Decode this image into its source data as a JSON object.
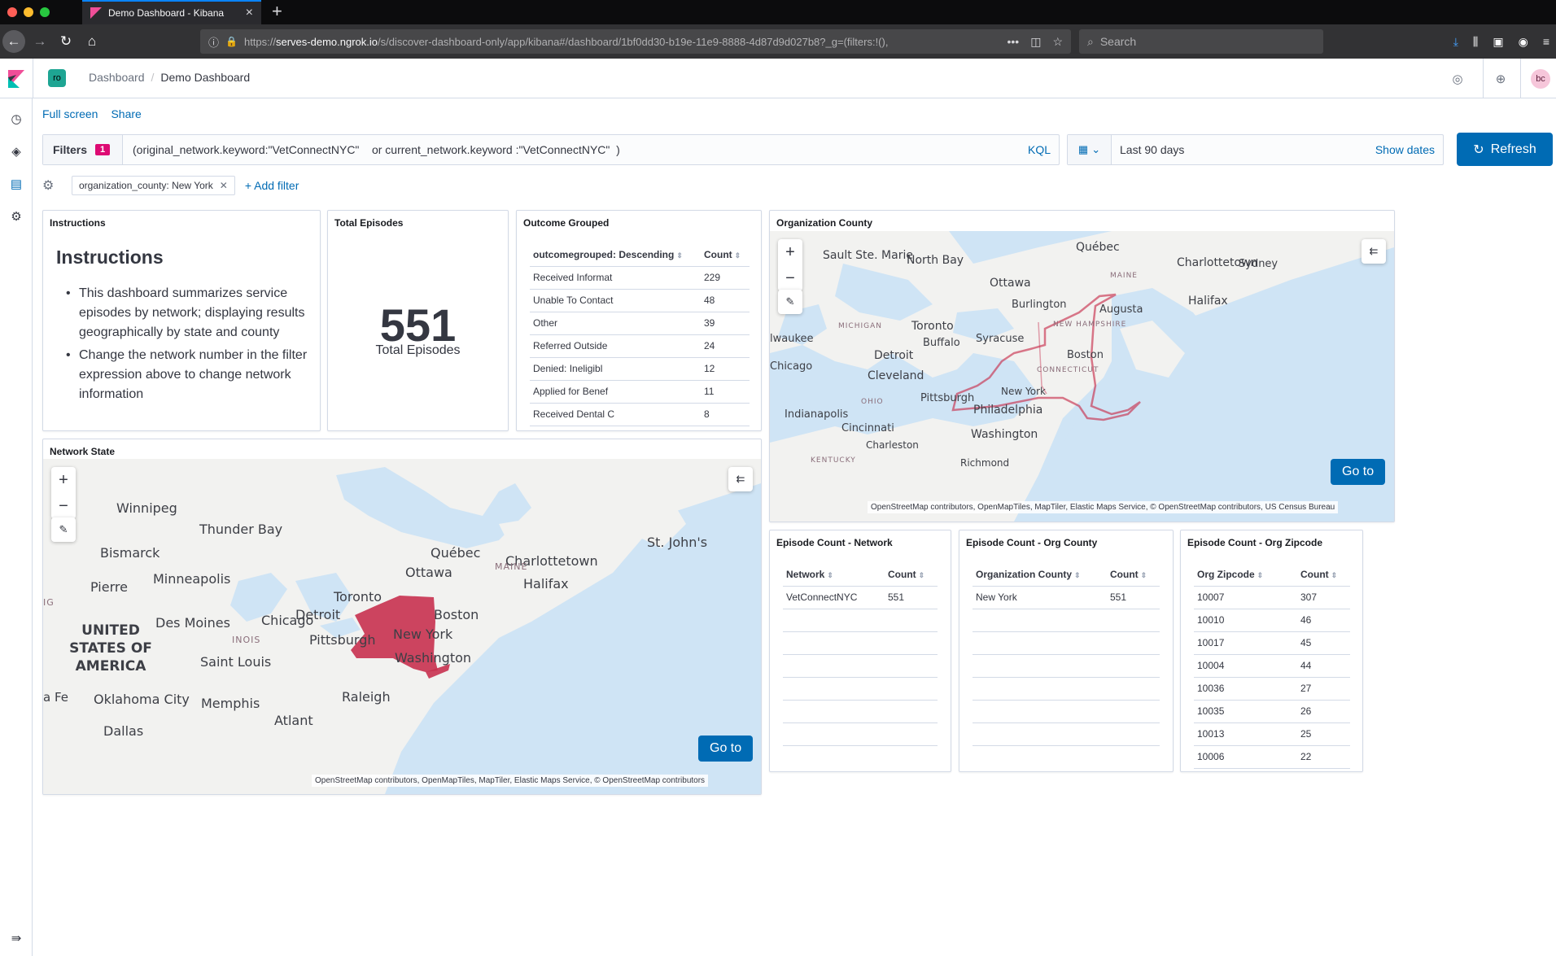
{
  "browser": {
    "tab_title": "Demo Dashboard - Kibana",
    "url_prefix": "https://",
    "url_host": "serves-demo.ngrok.io",
    "url_path": "/s/discover-dashboard-only/app/kibana#/dashboard/1bf0dd30-b19e-11e9-8888-4d87d9d027b8?_g=(filters:!(),",
    "search_placeholder": "Search"
  },
  "header": {
    "space_initials": "ro",
    "breadcrumb_root": "Dashboard",
    "breadcrumb_current": "Demo Dashboard",
    "user_initials": "bc"
  },
  "topnav": {
    "fullscreen": "Full screen",
    "share": "Share"
  },
  "querybar": {
    "filters_label": "Filters",
    "filters_count": "1",
    "query": "(original_network.keyword:\"VetConnectNYC\"    or current_network.keyword :\"VetConnectNYC\"  )",
    "language": "KQL",
    "date_range": "Last 90 days",
    "show_dates": "Show dates",
    "refresh": "Refresh"
  },
  "filters": {
    "pill": "organization_county: New York",
    "add": "+ Add filter"
  },
  "panels": {
    "instructions": {
      "title": "Instructions",
      "heading": "Instructions",
      "items": [
        "This dashboard summarizes service episodes by network; displaying results geographically by state and county",
        "Change the network number in the filter expression above to change network information"
      ]
    },
    "total": {
      "title": "Total Episodes",
      "value": "551",
      "label": "Total Episodes"
    },
    "outcome": {
      "title": "Outcome Grouped",
      "col1": "outcomegrouped: Descending",
      "col2": "Count",
      "rows": [
        [
          "Received Informat",
          "229"
        ],
        [
          "Unable To Contact",
          "48"
        ],
        [
          "Other",
          "39"
        ],
        [
          "Referred Outside",
          "24"
        ],
        [
          "Denied: Ineligibl",
          "12"
        ],
        [
          "Applied for Benef",
          "11"
        ],
        [
          "Received Dental C",
          "8"
        ]
      ]
    },
    "org_county_map": {
      "title": "Organization County",
      "goto": "Go to",
      "attribution": "OpenStreetMap contributors, OpenMapTiles, MapTiler, Elastic Maps Service, © OpenStreetMap contributors, US Census Bureau",
      "labels": [
        "Sault Ste. Marie",
        "North Bay",
        "Québec",
        "Charlottetown",
        "Sydney",
        "MAINE",
        "Ottawa",
        "Burlington",
        "Augusta",
        "Halifax",
        "MICHIGAN",
        "Toronto",
        "NEW HAMPSHIRE",
        "Buffalo",
        "Syracuse",
        "lwaukee",
        "Detroit",
        "Boston",
        "Chicago",
        "Cleveland",
        "CONNECTICUT",
        "OHIO",
        "Pittsburgh",
        "New York",
        "Indianapolis",
        "Philadelphia",
        "Cincinnati",
        "Washington",
        "Charleston",
        "KENTUCKY",
        "Richmond"
      ]
    },
    "network_state_map": {
      "title": "Network State",
      "goto": "Go to",
      "attribution": "OpenStreetMap contributors, OpenMapTiles, MapTiler, Elastic Maps Service, © OpenStreetMap contributors",
      "labels": [
        "Winnipeg",
        "Thunder Bay",
        "St. John's",
        "Bismarck",
        "Québec",
        "Charlottetown",
        "Minneapolis",
        "Ottawa",
        "MAINE",
        "Halifax",
        "Pierre",
        "Toronto",
        "UNITED STATES OF AMERICA",
        "Des Moines",
        "Chicago",
        "Detroit",
        "Boston",
        "INOIS",
        "Pittsburgh",
        "New York",
        "Saint Louis",
        "Washington",
        "Raleigh",
        "Oklahoma City",
        "Memphis",
        "a Fe",
        "Atlant",
        "Dallas",
        "IG"
      ]
    },
    "ep_network": {
      "title": "Episode Count - Network",
      "col1": "Network",
      "col2": "Count",
      "rows": [
        [
          "VetConnectNYC",
          "551"
        ]
      ]
    },
    "ep_county": {
      "title": "Episode Count - Org County",
      "col1": "Organization County",
      "col2": "Count",
      "rows": [
        [
          "New York",
          "551"
        ]
      ]
    },
    "ep_zip": {
      "title": "Episode Count - Org Zipcode",
      "col1": "Org Zipcode",
      "col2": "Count",
      "rows": [
        [
          "10007",
          "307"
        ],
        [
          "10010",
          "46"
        ],
        [
          "10017",
          "45"
        ],
        [
          "10004",
          "44"
        ],
        [
          "10036",
          "27"
        ],
        [
          "10035",
          "26"
        ],
        [
          "10013",
          "25"
        ],
        [
          "10006",
          "22"
        ]
      ]
    }
  },
  "colors": {
    "accent": "#006bb4",
    "badge": "#dd0a73",
    "state_fill": "#c8314f",
    "water": "#cfe4f5",
    "land": "#f2f2f0"
  }
}
